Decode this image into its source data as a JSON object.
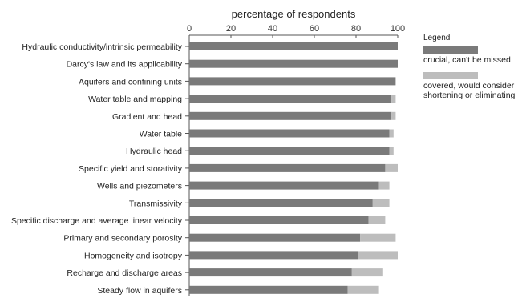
{
  "chart_data": {
    "type": "bar",
    "orientation": "horizontal",
    "stacked": true,
    "xlabel": "percentage of respondents",
    "xlim": [
      0,
      100
    ],
    "xticks": [
      0,
      20,
      40,
      60,
      80,
      100
    ],
    "grid": false,
    "legend": {
      "title": "Legend",
      "placement": "right"
    },
    "categories": [
      "Hydraulic conductivity/intrinsic permeability",
      "Darcy's law and its applicability",
      "Aquifers and confining units",
      "Water table and mapping",
      "Gradient and head",
      "Water table",
      "Hydraulic head",
      "Specific yield and storativity",
      "Wells and piezometers",
      "Transmissivity",
      "Specific discharge and average linear velocity",
      "Primary and secondary porosity",
      "Homogeneity and isotropy",
      "Recharge and discharge areas",
      "Steady flow in aquifers"
    ],
    "series": [
      {
        "name": "crucial, can't be missed",
        "color": "#7a7a7a",
        "values": [
          100,
          100,
          99,
          97,
          97,
          96,
          96,
          94,
          91,
          88,
          86,
          82,
          81,
          78,
          76
        ]
      },
      {
        "name": "covered, would consider shortening or eliminating",
        "color": "#bdbdbd",
        "values": [
          0,
          0,
          0,
          2,
          2,
          2,
          2,
          6,
          5,
          8,
          8,
          17,
          19,
          15,
          15
        ]
      }
    ]
  }
}
